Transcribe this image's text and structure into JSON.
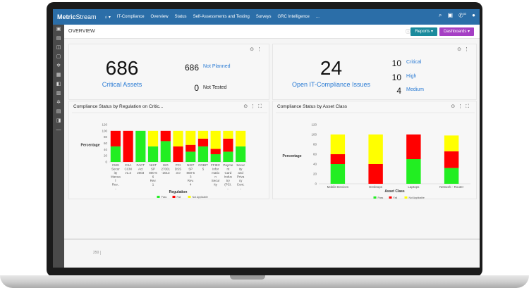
{
  "nav": {
    "logo_bold": "Metric",
    "logo_rest": "Stream",
    "home": "⌂ ▾",
    "items": [
      "IT-Compliance",
      "Overview",
      "Status",
      "Self-Assessments and Testing",
      "Surveys",
      "GRC Intelligence",
      "..."
    ],
    "icons": [
      "search-icon",
      "calendar-icon",
      "phone-icon",
      "user-icon"
    ],
    "badge": "53"
  },
  "header": {
    "title": "OVERVIEW",
    "reports": "Reports ▾",
    "dashboards": "Dashboards ▾",
    "reports_color": "#1a8a9c",
    "dashboards_color": "#a53fc4"
  },
  "kpi1": {
    "value": "686",
    "label": "Critical Assets",
    "rows": [
      {
        "n": "686",
        "label": "Not Planned"
      },
      {
        "n": "0",
        "label": "Not Tested"
      }
    ]
  },
  "kpi2": {
    "value": "24",
    "label": "Open IT-Compliance Issues",
    "rows": [
      {
        "n": "10",
        "label": "Critical"
      },
      {
        "n": "10",
        "label": "High"
      },
      {
        "n": "4",
        "label": "Medium"
      }
    ]
  },
  "bottom_axis_tick": "250",
  "chart_data": [
    {
      "type": "bar",
      "stacked": true,
      "title": "Compliance Status by Regulation on Critic...",
      "xlabel": "Regulation",
      "ylabel": "Percentage",
      "ylim": [
        0,
        120
      ],
      "yticks": [
        0,
        20,
        40,
        60,
        80,
        100,
        120
      ],
      "legend": "bottom",
      "categories": [
        "CMS Security Manual Rev....",
        "CSA CCM v1.3",
        "FACT Act 2003",
        "NIST SP 800-66 Rev. 1",
        "ISO 27001-2013",
        "PCI DSS 3.0",
        "NIST SP 800-53 Rev. 4",
        "COBIT 5",
        "FFIEC Information Security",
        "Payment Card Industry (PCI...",
        "Security and Privacy Cont..."
      ],
      "series": [
        {
          "name": "Pass",
          "color": "#22ee22",
          "values": [
            50,
            0,
            100,
            50,
            67,
            0,
            33,
            50,
            25,
            33,
            50
          ]
        },
        {
          "name": "Fail",
          "color": "#ff0000",
          "values": [
            50,
            100,
            0,
            0,
            33,
            50,
            22,
            25,
            17,
            42,
            0
          ]
        },
        {
          "name": "Not Applicable",
          "color": "#ffff00",
          "values": [
            0,
            0,
            0,
            50,
            0,
            50,
            45,
            25,
            58,
            25,
            50
          ]
        }
      ]
    },
    {
      "type": "bar",
      "stacked": true,
      "title": "Compliance Status by Asset Class",
      "xlabel": "Asset Class",
      "ylabel": "Percentage",
      "ylim": [
        0,
        120
      ],
      "yticks": [
        0,
        20,
        40,
        60,
        80,
        100,
        120
      ],
      "legend": "bottom",
      "categories": [
        "Mobile Devices",
        "Desktops",
        "Laptops",
        "Network - Router"
      ],
      "series": [
        {
          "name": "Pass",
          "color": "#22ee22",
          "values": [
            40,
            0,
            50,
            32
          ]
        },
        {
          "name": "Fail",
          "color": "#ff0000",
          "values": [
            20,
            40,
            50,
            34
          ]
        },
        {
          "name": "Not Applicable",
          "color": "#ffff00",
          "values": [
            40,
            60,
            0,
            32
          ]
        }
      ]
    }
  ]
}
